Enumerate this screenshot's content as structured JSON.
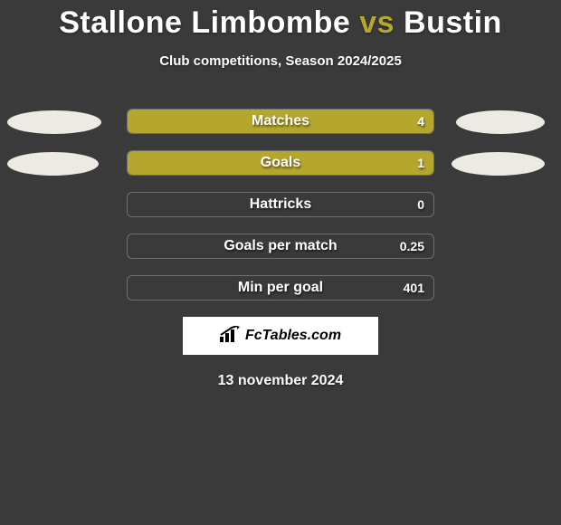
{
  "background_color": "#3a3a3a",
  "accent_color": "#b5a62e",
  "bar_border_color": "#6f6f6f",
  "ellipse_color": "#eceae3",
  "text_color": "#ffffff",
  "title": {
    "player_a": "Stallone Limbombe",
    "vs": "vs",
    "player_b": "Bustin",
    "fontsize": 34
  },
  "subtitle": "Club competitions, Season 2024/2025",
  "side_ellipses": [
    {
      "row": 0,
      "left_width": 104,
      "right_width": 98
    },
    {
      "row": 1,
      "left_width": 101,
      "right_width": 103
    }
  ],
  "stats": [
    {
      "label": "Matches",
      "value": "4",
      "fill_pct": 100,
      "fill_color": "#b5a62e"
    },
    {
      "label": "Goals",
      "value": "1",
      "fill_pct": 100,
      "fill_color": "#b5a62e"
    },
    {
      "label": "Hattricks",
      "value": "0",
      "fill_pct": 0,
      "fill_color": "#b5a62e"
    },
    {
      "label": "Goals per match",
      "value": "0.25",
      "fill_pct": 0,
      "fill_color": "#b5a62e"
    },
    {
      "label": "Min per goal",
      "value": "401",
      "fill_pct": 0,
      "fill_color": "#b5a62e"
    }
  ],
  "footer": {
    "brand": "FcTables.com",
    "box_bg": "#ffffff",
    "icon_color": "#000000"
  },
  "date": "13 november 2024"
}
